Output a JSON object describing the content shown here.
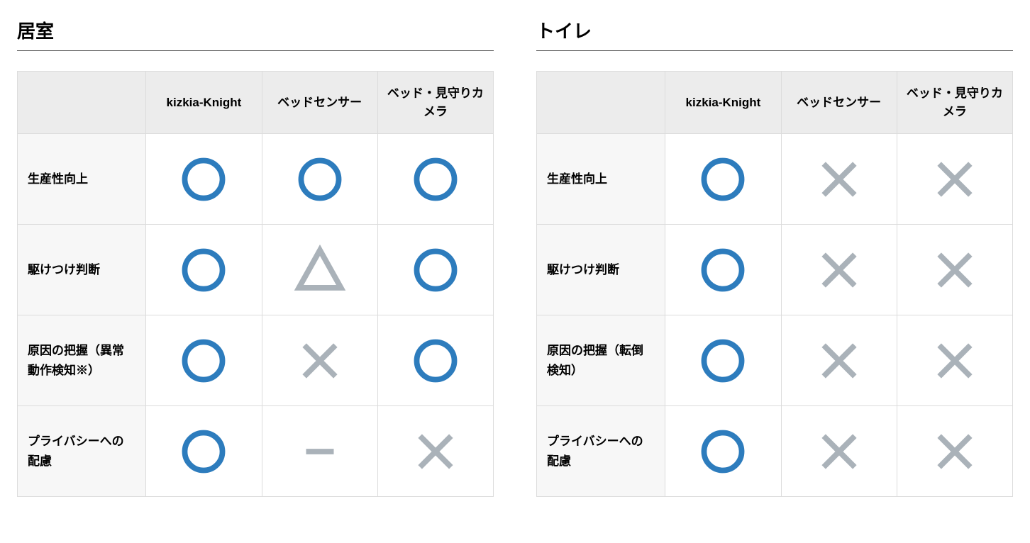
{
  "colors": {
    "circle": "#2d7cbd",
    "cross": "#aab2b9",
    "triangle": "#aab2b9",
    "dash": "#aab2b9",
    "header_bg": "#ececec",
    "rowhead_bg": "#f7f7f7",
    "border": "#dcdcdc",
    "title_underline": "#555555",
    "page_bg": "#ffffff"
  },
  "icon_stroke_width": 10,
  "panels": [
    {
      "title": "居室",
      "columns": [
        "kizkia-Knight",
        "ベッドセンサー",
        "ベッド・見守りカメラ"
      ],
      "rows": [
        {
          "label": "生産性向上",
          "cells": [
            "circle",
            "circle",
            "circle"
          ]
        },
        {
          "label": "駆けつけ判断",
          "cells": [
            "circle",
            "triangle",
            "circle"
          ]
        },
        {
          "label": "原因の把握（異常動作検知※）",
          "cells": [
            "circle",
            "cross",
            "circle"
          ]
        },
        {
          "label": "プライバシーへの配慮",
          "cells": [
            "circle",
            "dash",
            "cross"
          ]
        }
      ]
    },
    {
      "title": "トイレ",
      "columns": [
        "kizkia-Knight",
        "ベッドセンサー",
        "ベッド・見守りカメラ"
      ],
      "rows": [
        {
          "label": "生産性向上",
          "cells": [
            "circle",
            "cross",
            "cross"
          ]
        },
        {
          "label": "駆けつけ判断",
          "cells": [
            "circle",
            "cross",
            "cross"
          ]
        },
        {
          "label": "原因の把握（転倒検知）",
          "cells": [
            "circle",
            "cross",
            "cross"
          ]
        },
        {
          "label": "プライバシーへの配慮",
          "cells": [
            "circle",
            "cross",
            "cross"
          ]
        }
      ]
    }
  ]
}
